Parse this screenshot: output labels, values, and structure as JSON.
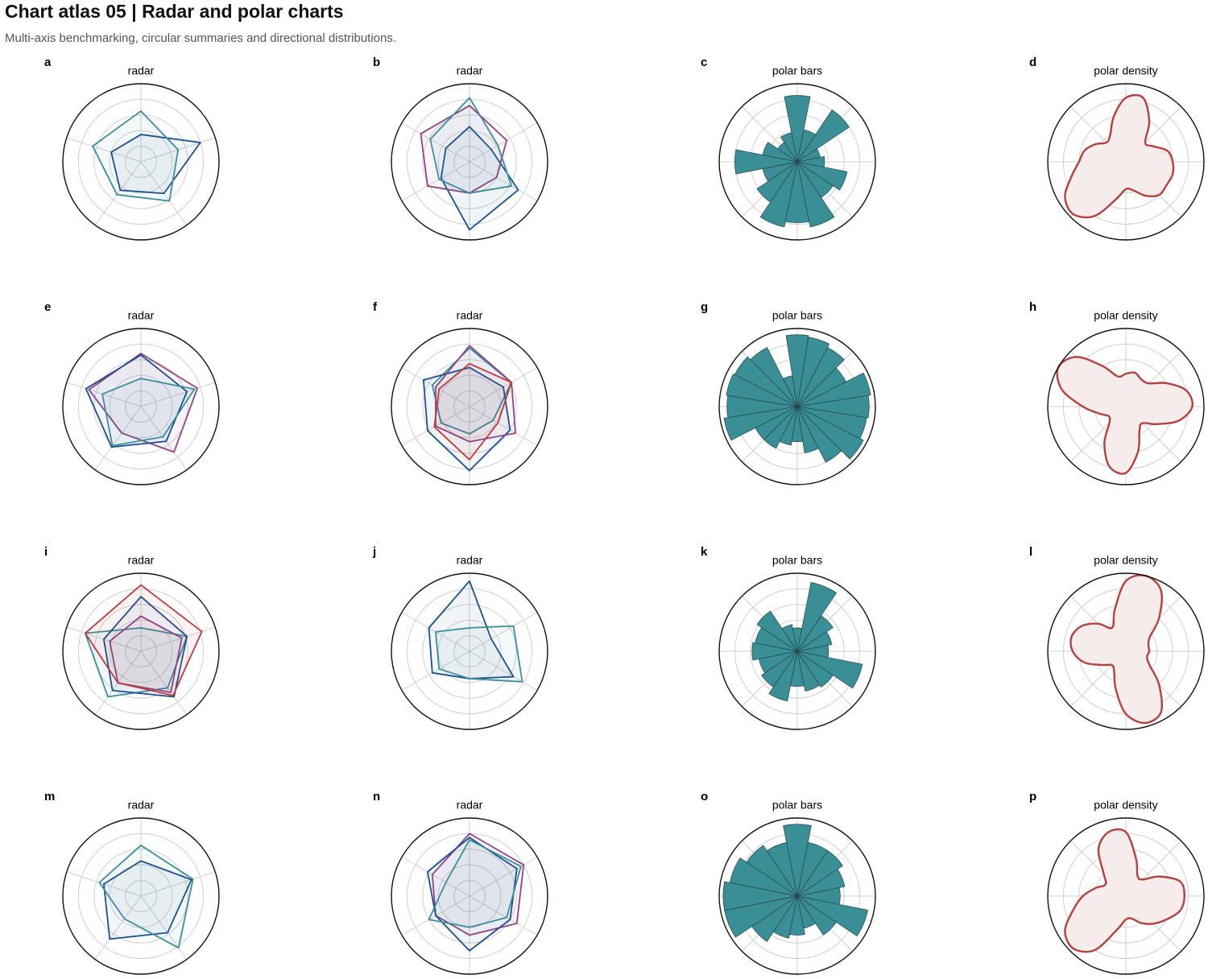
{
  "title": "Chart atlas 05 | Radar and polar charts",
  "subtitle": "Multi-axis benchmarking, circular summaries and directional distributions.",
  "chart_data": [
    {
      "type": "radar",
      "label": "a",
      "title": "radar",
      "rlim": [
        0,
        1
      ],
      "rticks": [
        0.2,
        0.4,
        0.6,
        0.8
      ],
      "series": [
        {
          "color": "#1b4f8f",
          "values": [
            0.35,
            0.8,
            0.5,
            0.45,
            0.4
          ]
        },
        {
          "color": "#3b8e9e",
          "values": [
            0.65,
            0.5,
            0.62,
            0.52,
            0.65
          ]
        }
      ]
    },
    {
      "type": "radar",
      "label": "b",
      "title": "radar",
      "rlim": [
        0,
        1
      ],
      "rticks": [
        0.2,
        0.4,
        0.6,
        0.8
      ],
      "series": [
        {
          "color": "#1b4f8f",
          "values": [
            0.45,
            0.32,
            0.72,
            0.87,
            0.42,
            0.35
          ]
        },
        {
          "color": "#8e4585",
          "values": [
            0.72,
            0.55,
            0.4,
            0.4,
            0.62,
            0.72
          ]
        },
        {
          "color": "#3b8e9e",
          "values": [
            0.82,
            0.42,
            0.62,
            0.4,
            0.45,
            0.58
          ]
        }
      ]
    },
    {
      "type": "polar_bar",
      "label": "c",
      "title": "polar bars",
      "rlim": [
        0,
        1
      ],
      "rticks": [
        0.2,
        0.4,
        0.6,
        0.8
      ],
      "color": "#3a8e96",
      "x": [
        0,
        22.5,
        45,
        67.5,
        90,
        112.5,
        135,
        157.5,
        180,
        202.5,
        225,
        247.5,
        270,
        292.5,
        315,
        337.5
      ],
      "values": [
        0.35,
        0.3,
        0.8,
        0.42,
        0.85,
        0.38,
        0.3,
        0.45,
        0.8,
        0.45,
        0.62,
        0.85,
        0.78,
        0.85,
        0.55,
        0.65
      ]
    },
    {
      "type": "polar_density",
      "label": "d",
      "title": "polar density",
      "rlim": [
        0,
        1
      ],
      "rticks": [
        0.2,
        0.4,
        0.6,
        0.8
      ],
      "color": "#b5413f",
      "fill": "#f6eceb",
      "x": [
        0,
        15,
        30,
        45,
        60,
        75,
        90,
        105,
        120,
        135,
        150,
        165,
        180,
        195,
        210,
        225,
        240,
        255,
        270,
        285,
        300,
        315,
        330,
        345
      ],
      "values": [
        0.6,
        0.55,
        0.4,
        0.35,
        0.6,
        0.85,
        0.82,
        0.6,
        0.4,
        0.35,
        0.45,
        0.55,
        0.6,
        0.72,
        0.9,
        0.95,
        0.8,
        0.5,
        0.35,
        0.38,
        0.5,
        0.6,
        0.6,
        0.62
      ]
    },
    {
      "type": "radar",
      "label": "e",
      "title": "radar",
      "rlim": [
        0,
        1
      ],
      "rticks": [
        0.2,
        0.4,
        0.6,
        0.8
      ],
      "series": [
        {
          "color": "#8e4585",
          "values": [
            0.68,
            0.76,
            0.72,
            0.42,
            0.7
          ]
        },
        {
          "color": "#1b4f8f",
          "values": [
            0.66,
            0.62,
            0.55,
            0.64,
            0.74
          ]
        },
        {
          "color": "#3b8e9e",
          "values": [
            0.36,
            0.72,
            0.48,
            0.62,
            0.52
          ]
        }
      ]
    },
    {
      "type": "radar",
      "label": "f",
      "title": "radar",
      "rlim": [
        0,
        1
      ],
      "rticks": [
        0.2,
        0.4,
        0.6,
        0.8
      ],
      "series": [
        {
          "color": "#3b8e9e",
          "values": [
            0.75,
            0.62,
            0.35,
            0.35,
            0.42,
            0.55
          ]
        },
        {
          "color": "#1b4f8f",
          "values": [
            0.5,
            0.5,
            0.6,
            0.82,
            0.62,
            0.68
          ]
        },
        {
          "color": "#8e4585",
          "values": [
            0.78,
            0.62,
            0.68,
            0.45,
            0.5,
            0.5
          ]
        },
        {
          "color": "#c0393b",
          "values": [
            0.55,
            0.62,
            0.42,
            0.68,
            0.52,
            0.45
          ]
        }
      ]
    },
    {
      "type": "polar_bar",
      "label": "g",
      "title": "polar bars",
      "rlim": [
        0,
        1
      ],
      "rticks": [
        0.2,
        0.4,
        0.6,
        0.8
      ],
      "color": "#3a8e96",
      "x": [
        0,
        18,
        36,
        54,
        72,
        90,
        108,
        126,
        144,
        162,
        180,
        198,
        216,
        234,
        252,
        270,
        288,
        306,
        324,
        342
      ],
      "values": [
        0.92,
        0.95,
        0.7,
        0.85,
        0.9,
        0.92,
        0.4,
        0.85,
        0.9,
        0.92,
        0.9,
        0.95,
        0.6,
        0.6,
        0.5,
        0.45,
        0.6,
        0.8,
        0.95,
        0.9
      ]
    },
    {
      "type": "polar_density",
      "label": "h",
      "title": "polar density",
      "rlim": [
        0,
        1
      ],
      "rticks": [
        0.2,
        0.4,
        0.6,
        0.8
      ],
      "color": "#b5413f",
      "fill": "#f6eceb",
      "x": [
        0,
        15,
        30,
        45,
        60,
        75,
        90,
        105,
        120,
        135,
        150,
        165,
        180,
        195,
        210,
        225,
        240,
        255,
        270,
        285,
        300,
        315,
        330,
        345
      ],
      "values": [
        0.85,
        0.8,
        0.6,
        0.42,
        0.4,
        0.45,
        0.42,
        0.4,
        0.6,
        0.9,
        1.0,
        0.85,
        0.55,
        0.35,
        0.25,
        0.3,
        0.55,
        0.8,
        0.85,
        0.6,
        0.35,
        0.3,
        0.45,
        0.7
      ]
    },
    {
      "type": "radar",
      "label": "i",
      "title": "radar",
      "rlim": [
        0,
        1
      ],
      "rticks": [
        0.2,
        0.4,
        0.6,
        0.8
      ],
      "series": [
        {
          "color": "#3b8e9e",
          "values": [
            0.3,
            0.62,
            0.58,
            0.72,
            0.75
          ]
        },
        {
          "color": "#8e4585",
          "values": [
            0.45,
            0.55,
            0.65,
            0.5,
            0.42
          ]
        },
        {
          "color": "#1b4f8f",
          "values": [
            0.7,
            0.62,
            0.72,
            0.62,
            0.5
          ]
        },
        {
          "color": "#c0393b",
          "values": [
            0.85,
            0.82,
            0.7,
            0.5,
            0.75
          ]
        }
      ]
    },
    {
      "type": "radar",
      "label": "j",
      "title": "radar",
      "rlim": [
        0,
        1
      ],
      "rticks": [
        0.2,
        0.4,
        0.6,
        0.8
      ],
      "series": [
        {
          "color": "#1b4f8f",
          "values": [
            0.9,
            0.32,
            0.65,
            0.35,
            0.55,
            0.6
          ]
        },
        {
          "color": "#3b8e9e",
          "values": [
            0.3,
            0.65,
            0.78,
            0.35,
            0.45,
            0.5
          ]
        }
      ]
    },
    {
      "type": "polar_bar",
      "label": "k",
      "title": "polar bars",
      "rlim": [
        0,
        1
      ],
      "rticks": [
        0.2,
        0.4,
        0.6,
        0.8
      ],
      "color": "#3a8e96",
      "x": [
        0,
        22.5,
        45,
        67.5,
        90,
        112.5,
        135,
        157.5,
        180,
        202.5,
        225,
        247.5,
        270,
        292.5,
        315,
        337.5
      ],
      "values": [
        0.4,
        0.45,
        0.55,
        0.9,
        0.3,
        0.35,
        0.62,
        0.55,
        0.58,
        0.5,
        0.55,
        0.65,
        0.45,
        0.52,
        0.55,
        0.85
      ]
    },
    {
      "type": "polar_density",
      "label": "l",
      "title": "polar density",
      "rlim": [
        0,
        1
      ],
      "rticks": [
        0.2,
        0.4,
        0.6,
        0.8
      ],
      "color": "#b5413f",
      "fill": "#f6eceb",
      "x": [
        0,
        15,
        30,
        45,
        60,
        75,
        90,
        105,
        120,
        135,
        150,
        165,
        180,
        195,
        210,
        225,
        240,
        255,
        270,
        285,
        300,
        315,
        330,
        345
      ],
      "values": [
        0.3,
        0.3,
        0.35,
        0.6,
        0.9,
        1.0,
        0.9,
        0.55,
        0.35,
        0.5,
        0.65,
        0.72,
        0.68,
        0.55,
        0.35,
        0.25,
        0.3,
        0.5,
        0.8,
        0.95,
        0.9,
        0.6,
        0.35,
        0.28
      ]
    },
    {
      "type": "radar",
      "label": "m",
      "title": "radar",
      "rlim": [
        0,
        1
      ],
      "rticks": [
        0.2,
        0.4,
        0.6,
        0.8
      ],
      "series": [
        {
          "color": "#1b4f8f",
          "values": [
            0.45,
            0.68,
            0.58,
            0.68,
            0.5
          ]
        },
        {
          "color": "#3b8e9e",
          "values": [
            0.65,
            0.7,
            0.82,
            0.36,
            0.56
          ]
        }
      ]
    },
    {
      "type": "radar",
      "label": "n",
      "title": "radar",
      "rlim": [
        0,
        1
      ],
      "rticks": [
        0.2,
        0.4,
        0.6,
        0.8
      ],
      "series": [
        {
          "color": "#8e4585",
          "values": [
            0.8,
            0.8,
            0.7,
            0.5,
            0.5,
            0.55
          ]
        },
        {
          "color": "#1b4f8f",
          "values": [
            0.75,
            0.7,
            0.6,
            0.7,
            0.5,
            0.62
          ]
        },
        {
          "color": "#3b8e9e",
          "values": [
            0.72,
            0.76,
            0.55,
            0.4,
            0.6,
            0.35
          ]
        }
      ]
    },
    {
      "type": "polar_bar",
      "label": "o",
      "title": "polar bars",
      "rlim": [
        0,
        1
      ],
      "rticks": [
        0.2,
        0.4,
        0.6,
        0.8
      ],
      "color": "#3a8e96",
      "x": [
        0,
        22.5,
        45,
        67.5,
        90,
        112.5,
        135,
        157.5,
        180,
        202.5,
        225,
        247.5,
        270,
        292.5,
        315,
        337.5
      ],
      "values": [
        0.55,
        0.62,
        0.7,
        0.7,
        0.92,
        0.7,
        0.78,
        0.88,
        0.95,
        0.95,
        0.7,
        0.55,
        0.5,
        0.42,
        0.6,
        0.92
      ]
    },
    {
      "type": "polar_density",
      "label": "p",
      "title": "polar density",
      "rlim": [
        0,
        1
      ],
      "rticks": [
        0.2,
        0.4,
        0.6,
        0.8
      ],
      "color": "#b5413f",
      "fill": "#f6eceb",
      "x": [
        0,
        15,
        30,
        45,
        60,
        75,
        90,
        105,
        120,
        135,
        150,
        165,
        180,
        195,
        210,
        225,
        240,
        255,
        270,
        285,
        300,
        315,
        330,
        345
      ],
      "values": [
        0.75,
        0.72,
        0.5,
        0.3,
        0.3,
        0.5,
        0.82,
        0.85,
        0.7,
        0.4,
        0.3,
        0.4,
        0.55,
        0.7,
        0.9,
        0.95,
        0.8,
        0.45,
        0.3,
        0.3,
        0.4,
        0.5,
        0.6,
        0.72
      ]
    }
  ]
}
